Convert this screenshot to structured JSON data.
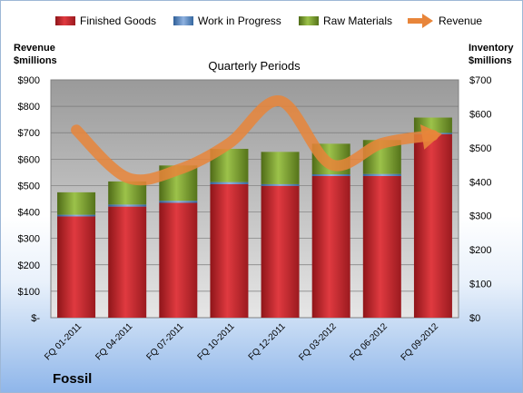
{
  "company": "Fossil",
  "chart_data": {
    "type": "bar",
    "title": "Quarterly Periods",
    "categories": [
      "FQ 01-2011",
      "FQ 04-2011",
      "FQ 07-2011",
      "FQ 10-2011",
      "FQ 12-2011",
      "FQ 03-2012",
      "FQ 06-2012",
      "FQ 09-2012"
    ],
    "stacked": true,
    "series": [
      {
        "name": "Finished Goods",
        "axis": "right",
        "values": [
          298,
          327,
          338,
          393,
          388,
          417,
          417,
          540
        ],
        "color": "#c0272d"
      },
      {
        "name": "Work in Progress",
        "axis": "right",
        "values": [
          5,
          6,
          6,
          6,
          5,
          5,
          6,
          4
        ],
        "color": "#4f81bd"
      },
      {
        "name": "Raw Materials",
        "axis": "right",
        "values": [
          66,
          68,
          104,
          98,
          95,
          90,
          100,
          45
        ],
        "color": "#6b8e23"
      },
      {
        "name": "Revenue",
        "type": "line",
        "axis": "left",
        "values": [
          710,
          530,
          560,
          660,
          820,
          580,
          660,
          690
        ],
        "color": "#e8853a"
      }
    ],
    "left_axis": {
      "label_line1": "Revenue",
      "label_line2": "$millions",
      "min": 0,
      "max": 900,
      "step": 100,
      "ticks": [
        "$-",
        "$100",
        "$200",
        "$300",
        "$400",
        "$500",
        "$600",
        "$700",
        "$800",
        "$900"
      ]
    },
    "right_axis": {
      "label_line1": "Inventory",
      "label_line2": "$millions",
      "min": 0,
      "max": 700,
      "step": 100,
      "ticks": [
        "$0",
        "$100",
        "$200",
        "$300",
        "$400",
        "$500",
        "$600",
        "$700"
      ]
    },
    "legend_position": "top",
    "grid": true
  }
}
